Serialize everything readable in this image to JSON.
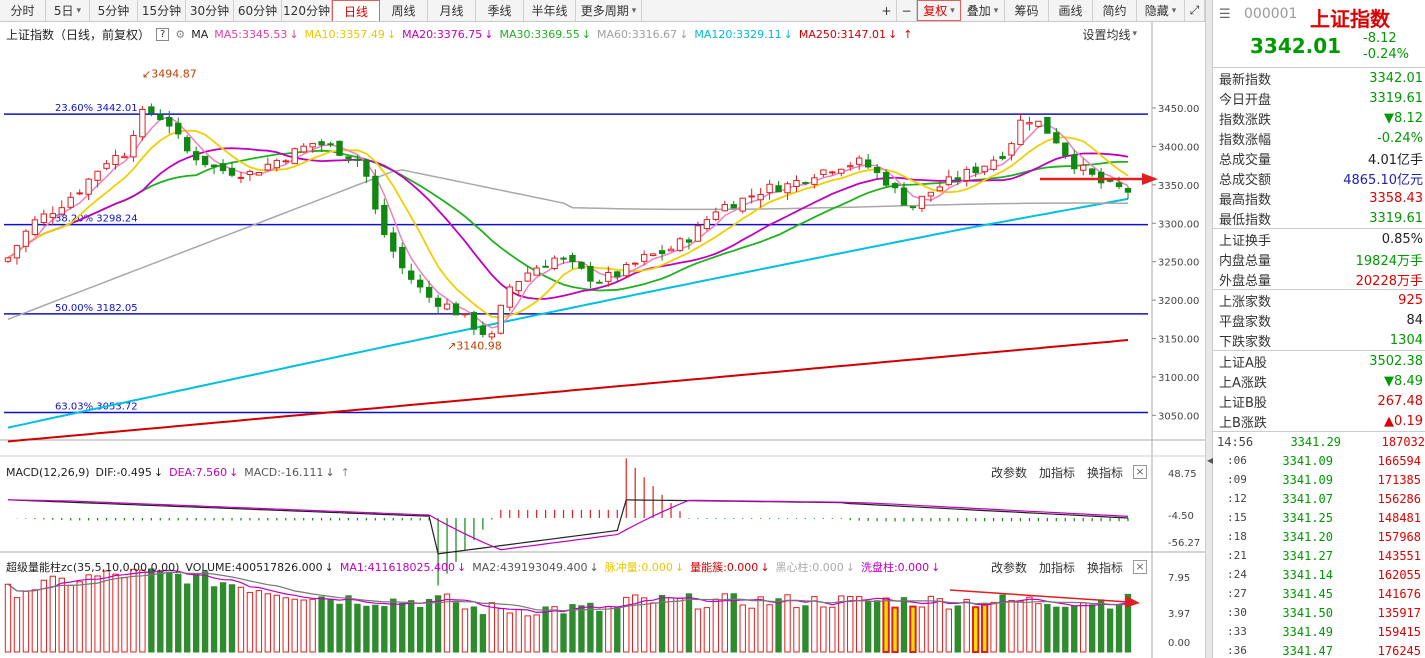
{
  "toolbar": {
    "left": [
      "分时",
      "5日",
      "5分钟",
      "15分钟",
      "30分钟",
      "60分钟",
      "120分钟",
      "日线",
      "周线",
      "月线",
      "季线",
      "半年线",
      "更多周期"
    ],
    "active_index": 7,
    "dropdown_indices": [
      1,
      12
    ],
    "right": [
      "+",
      "−",
      "复权",
      "叠加",
      "筹码",
      "画线",
      "简约",
      "隐藏"
    ],
    "right_dropdown": [
      2,
      3,
      7
    ]
  },
  "kline_legend": {
    "title": "上证指数（日线，前复权）",
    "help": "?",
    "ma_label": "MA",
    "items": [
      {
        "text": "MA5:3345.53",
        "color": "#e040a0"
      },
      {
        "text": "MA10:3357.49",
        "color": "#e8c800"
      },
      {
        "text": "MA20:3376.75",
        "color": "#c000c0"
      },
      {
        "text": "MA30:3369.55",
        "color": "#20b020"
      },
      {
        "text": "MA60:3316.67",
        "color": "#a0a0a0"
      },
      {
        "text": "MA120:3329.11",
        "color": "#00b8d8"
      },
      {
        "text": "MA250:3147.01",
        "color": "#d00000"
      }
    ],
    "setting": "设置均线"
  },
  "kline_axis": [
    "3450.00",
    "3400.00",
    "3350.00",
    "3300.00",
    "3250.00",
    "3200.00",
    "3150.00",
    "3100.00",
    "3050.00"
  ],
  "fib": [
    {
      "label": "23.60% 3442.01",
      "value": 3442.01
    },
    {
      "label": "38.20% 3298.24",
      "value": 3298.24
    },
    {
      "label": "50.00% 3182.05",
      "value": 3182.05
    },
    {
      "label": "63.03% 3053.72",
      "value": 3053.72
    }
  ],
  "annotations": {
    "high": "3494.87",
    "low": "3140.98"
  },
  "macd_legend": {
    "title": "MACD(12,26,9)",
    "items": [
      {
        "text": "DIF:-0.495",
        "color": "#222"
      },
      {
        "text": "DEA:7.560",
        "color": "#c000c0"
      },
      {
        "text": "MACD:-16.111",
        "color": "#555"
      }
    ],
    "buttons": [
      "改参数",
      "加指标",
      "换指标"
    ],
    "axis": [
      "48.75",
      "-4.50",
      "-56.27"
    ]
  },
  "vol_legend": {
    "title": "超级量能柱zc(35,5,10,0.00,0.00)",
    "items": [
      {
        "text": "VOLUME:400517826.000",
        "color": "#222"
      },
      {
        "text": "MA1:411618025.400",
        "color": "#c000c0"
      },
      {
        "text": "MA2:439193049.400",
        "color": "#555"
      },
      {
        "text": "脉冲量:0.000",
        "color": "#e8c800"
      },
      {
        "text": "量能簇:0.000",
        "color": "#d00000"
      },
      {
        "text": "黑心柱:0.000",
        "color": "#aaa"
      },
      {
        "text": "洗盘柱:0.000",
        "color": "#c000c0"
      }
    ],
    "buttons": [
      "改参数",
      "加指标",
      "换指标"
    ],
    "axis": [
      "7.95",
      "3.97",
      "0.00"
    ]
  },
  "panel": {
    "code": "000001",
    "name": "上证指数",
    "price": "3342.01",
    "change": "-8.12",
    "pct": "-0.24%",
    "stats1": [
      {
        "k": "最新指数",
        "v": "3342.01",
        "c": "g"
      },
      {
        "k": "今日开盘",
        "v": "3319.61",
        "c": "g"
      },
      {
        "k": "指数涨跌",
        "v": "▼8.12",
        "c": "g"
      },
      {
        "k": "指数涨幅",
        "v": "-0.24%",
        "c": "g"
      },
      {
        "k": "总成交量",
        "v": "4.01亿手",
        "c": "dk"
      },
      {
        "k": "总成交额",
        "v": "4865.10亿元",
        "c": "b"
      },
      {
        "k": "最高指数",
        "v": "3358.43",
        "c": "r"
      },
      {
        "k": "最低指数",
        "v": "3319.61",
        "c": "g"
      }
    ],
    "stats2": [
      {
        "k": "上证换手",
        "v": "0.85%",
        "c": "dk"
      },
      {
        "k": "内盘总量",
        "v": "19824万手",
        "c": "g"
      },
      {
        "k": "外盘总量",
        "v": "20228万手",
        "c": "r"
      }
    ],
    "stats3": [
      {
        "k": "上涨家数",
        "v": "925",
        "c": "r"
      },
      {
        "k": "平盘家数",
        "v": "84",
        "c": "dk"
      },
      {
        "k": "下跌家数",
        "v": "1304",
        "c": "g"
      }
    ],
    "stats4": [
      {
        "k": "上证A股",
        "v": "3502.38",
        "c": "g"
      },
      {
        "k": "上A涨跌",
        "v": "▼8.49",
        "c": "g"
      },
      {
        "k": "上证B股",
        "v": "267.48",
        "c": "r"
      },
      {
        "k": "上B涨跌",
        "v": "▲0.19",
        "c": "r"
      }
    ],
    "ticks": [
      {
        "t": "14:56",
        "p": "3341.29",
        "v": "187032"
      },
      {
        "t": ":06",
        "p": "3341.09",
        "v": "166594"
      },
      {
        "t": ":09",
        "p": "3341.09",
        "v": "171385"
      },
      {
        "t": ":12",
        "p": "3341.07",
        "v": "156286"
      },
      {
        "t": ":15",
        "p": "3341.25",
        "v": "148481"
      },
      {
        "t": ":18",
        "p": "3341.20",
        "v": "157968"
      },
      {
        "t": ":21",
        "p": "3341.27",
        "v": "143551"
      },
      {
        "t": ":24",
        "p": "3341.14",
        "v": "162055"
      },
      {
        "t": ":27",
        "p": "3341.45",
        "v": "141676"
      },
      {
        "t": ":30",
        "p": "3341.50",
        "v": "135917"
      },
      {
        "t": ":33",
        "p": "3341.49",
        "v": "159415"
      },
      {
        "t": ":36",
        "p": "3341.47",
        "v": "176245"
      }
    ]
  }
}
